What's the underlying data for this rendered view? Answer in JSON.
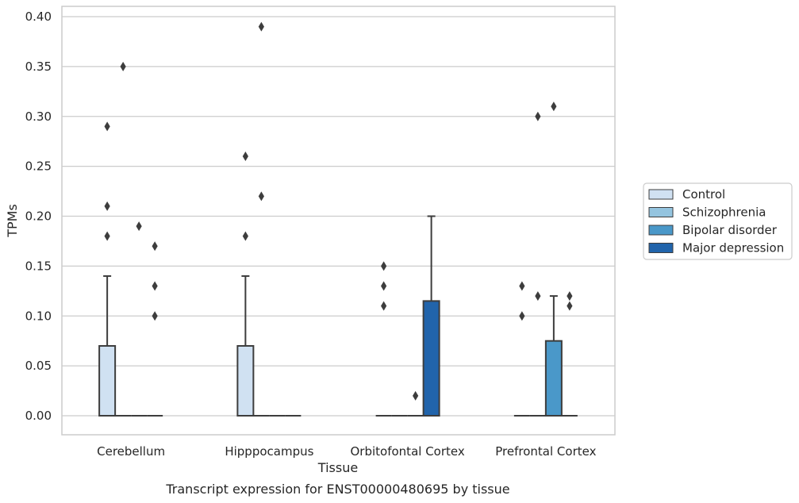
{
  "caption": "Transcript expression for ENST00000480695 by tissue",
  "colors": {
    "Control": "#d0e1f2",
    "Schizophrenia": "#94c4df",
    "Bipolar disorder": "#4a98c9",
    "Major depression": "#2164ab",
    "grid": "#cccccc",
    "frame": "#cccccc",
    "box_edge": "#3d3d3d"
  },
  "chart_data": {
    "type": "box",
    "xlabel": "Tissue",
    "ylabel": "TPMs",
    "ylim": [
      -0.02,
      0.41
    ],
    "yticks": [
      0.0,
      0.05,
      0.1,
      0.15,
      0.2,
      0.25,
      0.3,
      0.35,
      0.4
    ],
    "ytick_labels": [
      "0.00",
      "0.05",
      "0.10",
      "0.15",
      "0.20",
      "0.25",
      "0.30",
      "0.35",
      "0.40"
    ],
    "grid": true,
    "legend_position": "right",
    "categories": [
      "Cerebellum",
      "Hipppocampus",
      "Orbitofontal Cortex",
      "Prefrontal Cortex"
    ],
    "series": [
      {
        "name": "Control",
        "boxes": [
          {
            "q1": 0.0,
            "median": 0.0,
            "q3": 0.07,
            "whisker_low": 0.0,
            "whisker_high": 0.14,
            "outliers": [
              0.18,
              0.21,
              0.29
            ]
          },
          {
            "q1": 0.0,
            "median": 0.0,
            "q3": 0.07,
            "whisker_low": 0.0,
            "whisker_high": 0.14,
            "outliers": [
              0.18,
              0.26
            ]
          },
          {
            "q1": 0.0,
            "median": 0.0,
            "q3": 0.0,
            "whisker_low": 0.0,
            "whisker_high": 0.0,
            "outliers": [
              0.11,
              0.13,
              0.15
            ]
          },
          {
            "q1": 0.0,
            "median": 0.0,
            "q3": 0.0,
            "whisker_low": 0.0,
            "whisker_high": 0.0,
            "outliers": [
              0.1,
              0.13
            ]
          }
        ]
      },
      {
        "name": "Schizophrenia",
        "boxes": [
          {
            "q1": 0.0,
            "median": 0.0,
            "q3": 0.0,
            "whisker_low": 0.0,
            "whisker_high": 0.0,
            "outliers": [
              0.35
            ]
          },
          {
            "q1": 0.0,
            "median": 0.0,
            "q3": 0.0,
            "whisker_low": 0.0,
            "whisker_high": 0.0,
            "outliers": [
              0.22,
              0.39
            ]
          },
          {
            "q1": 0.0,
            "median": 0.0,
            "q3": 0.0,
            "whisker_low": 0.0,
            "whisker_high": 0.0,
            "outliers": []
          },
          {
            "q1": 0.0,
            "median": 0.0,
            "q3": 0.0,
            "whisker_low": 0.0,
            "whisker_high": 0.0,
            "outliers": [
              0.12,
              0.3
            ]
          }
        ]
      },
      {
        "name": "Bipolar disorder",
        "boxes": [
          {
            "q1": 0.0,
            "median": 0.0,
            "q3": 0.0,
            "whisker_low": 0.0,
            "whisker_high": 0.0,
            "outliers": [
              0.19
            ]
          },
          {
            "q1": 0.0,
            "median": 0.0,
            "q3": 0.0,
            "whisker_low": 0.0,
            "whisker_high": 0.0,
            "outliers": []
          },
          {
            "q1": 0.0,
            "median": 0.0,
            "q3": 0.0,
            "whisker_low": 0.0,
            "whisker_high": 0.0,
            "outliers": [
              0.02
            ]
          },
          {
            "q1": 0.0,
            "median": 0.0,
            "q3": 0.075,
            "whisker_low": 0.0,
            "whisker_high": 0.12,
            "outliers": [
              0.31
            ]
          }
        ]
      },
      {
        "name": "Major depression",
        "boxes": [
          {
            "q1": 0.0,
            "median": 0.0,
            "q3": 0.0,
            "whisker_low": 0.0,
            "whisker_high": 0.0,
            "outliers": [
              0.1,
              0.13,
              0.17
            ]
          },
          {
            "q1": 0.0,
            "median": 0.0,
            "q3": 0.0,
            "whisker_low": 0.0,
            "whisker_high": 0.0,
            "outliers": []
          },
          {
            "q1": 0.0,
            "median": 0.0,
            "q3": 0.115,
            "whisker_low": 0.0,
            "whisker_high": 0.2,
            "outliers": []
          },
          {
            "q1": 0.0,
            "median": 0.0,
            "q3": 0.0,
            "whisker_low": 0.0,
            "whisker_high": 0.0,
            "outliers": [
              0.11,
              0.12
            ]
          }
        ]
      }
    ]
  }
}
